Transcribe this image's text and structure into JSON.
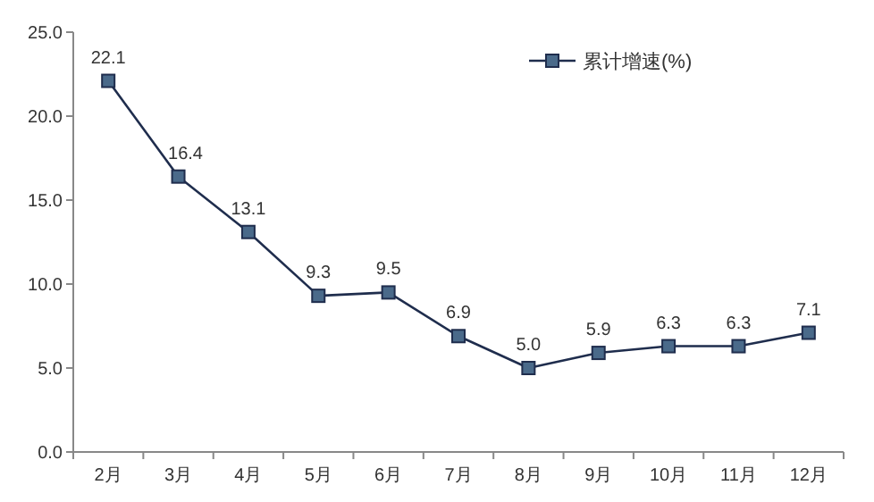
{
  "chart_data": {
    "type": "line",
    "categories": [
      "2月",
      "3月",
      "4月",
      "5月",
      "6月",
      "7月",
      "8月",
      "9月",
      "10月",
      "11月",
      "12月"
    ],
    "series": [
      {
        "name": "累计增速(%)",
        "color": "#1f2d4d",
        "values": [
          22.1,
          16.4,
          13.1,
          9.3,
          9.5,
          6.9,
          5.0,
          5.9,
          6.3,
          6.3,
          7.1
        ],
        "value_labels": [
          "22.1",
          "16.4",
          "13.1",
          "9.3",
          "9.5",
          "6.9",
          "5.0",
          "5.9",
          "6.3",
          "6.3",
          "7.1"
        ]
      }
    ],
    "ylim": [
      0,
      25
    ],
    "yticks": [
      {
        "value": 0,
        "label": "0.0"
      },
      {
        "value": 5,
        "label": "5.0"
      },
      {
        "value": 10,
        "label": "10.0"
      },
      {
        "value": 15,
        "label": "15.0"
      },
      {
        "value": 20,
        "label": "20.0"
      },
      {
        "value": 25,
        "label": "25.0"
      }
    ],
    "marker": "square",
    "line_style": "solid",
    "legend": "top right",
    "grid": false
  }
}
